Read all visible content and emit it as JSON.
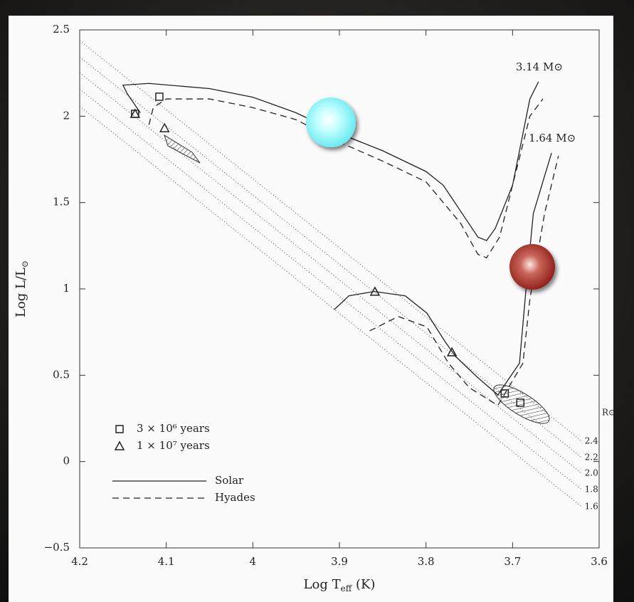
{
  "chart_data": {
    "type": "line",
    "xlabel": [
      "Log T",
      "eff",
      " (K)"
    ],
    "ylabel": [
      "Log L/L",
      "⊙"
    ],
    "xlim": [
      4.2,
      3.6
    ],
    "ylim": [
      -0.5,
      2.5
    ],
    "xticks": [
      4.2,
      4.1,
      4,
      3.9,
      3.8,
      3.7,
      3.6
    ],
    "yticks": [
      {
        "value": -0.5,
        "label": "−0.5"
      },
      0,
      0.5,
      1,
      1.5,
      2,
      2.5
    ],
    "color": "#222222",
    "series": [
      {
        "name": "Solar",
        "dash": "solid",
        "label": "3.14 M⊙",
        "x": [
          4.13,
          4.145,
          4.15,
          4.12,
          4.05,
          4.0,
          3.95,
          3.9,
          3.85,
          3.8,
          3.78,
          3.76,
          3.74,
          3.73,
          3.72,
          3.7,
          3.68,
          3.67
        ],
        "values": [
          2.02,
          2.13,
          2.18,
          2.19,
          2.16,
          2.11,
          2.02,
          1.9,
          1.8,
          1.68,
          1.6,
          1.45,
          1.3,
          1.28,
          1.35,
          1.6,
          2.1,
          2.2
        ]
      },
      {
        "name": "Hyades",
        "dash": "dashed",
        "x": [
          4.12,
          4.115,
          4.1,
          4.05,
          4.0,
          3.95,
          3.9,
          3.85,
          3.8,
          3.78,
          3.76,
          3.74,
          3.73,
          3.715,
          3.7,
          3.68,
          3.665
        ],
        "values": [
          1.95,
          2.05,
          2.1,
          2.1,
          2.05,
          1.98,
          1.85,
          1.74,
          1.62,
          1.5,
          1.38,
          1.2,
          1.18,
          1.3,
          1.6,
          2.0,
          2.1
        ]
      },
      {
        "name": "Solar",
        "dash": "solid",
        "label": "1.64 M⊙",
        "x": [
          3.906,
          3.889,
          3.86,
          3.824,
          3.799,
          3.778,
          3.766,
          3.741,
          3.717,
          3.692,
          3.684,
          3.676,
          3.655
        ],
        "values": [
          0.88,
          0.96,
          0.985,
          0.96,
          0.86,
          0.695,
          0.61,
          0.49,
          0.386,
          0.57,
          1.025,
          1.437,
          1.787
        ]
      },
      {
        "name": "Hyades",
        "dash": "dashed",
        "x": [
          3.865,
          3.832,
          3.799,
          3.774,
          3.75,
          3.717,
          3.688,
          3.68,
          3.663,
          3.647
        ],
        "values": [
          0.757,
          0.84,
          0.78,
          0.57,
          0.428,
          0.325,
          0.57,
          0.94,
          1.437,
          1.77
        ]
      }
    ],
    "markers": [
      {
        "name": "3 × 10⁶ years",
        "marker": "square",
        "x": [
          4.108,
          4.136,
          3.709,
          3.691
        ],
        "values": [
          2.113,
          2.014,
          0.395,
          0.341
        ]
      },
      {
        "name": "1 × 10⁷ years",
        "marker": "triangle",
        "x": [
          4.136,
          4.102,
          3.859,
          3.77
        ],
        "values": [
          2.014,
          1.931,
          0.984,
          0.633
        ]
      }
    ],
    "isoradius": {
      "title": "R⊙",
      "lines": [
        {
          "label": "2.4",
          "x": [
            4.2,
            3.62
          ],
          "values": [
            2.438,
            0.118
          ]
        },
        {
          "label": "2.2",
          "x": [
            4.2,
            3.62
          ],
          "values": [
            2.343,
            0.023
          ]
        },
        {
          "label": "2.0",
          "x": [
            4.2,
            3.62
          ],
          "values": [
            2.252,
            -0.068
          ]
        },
        {
          "label": "1.8",
          "x": [
            4.2,
            3.62
          ],
          "values": [
            2.157,
            -0.163
          ]
        },
        {
          "label": "1.6",
          "x": [
            4.2,
            3.62
          ],
          "values": [
            2.058,
            -0.262
          ]
        }
      ]
    }
  }
}
